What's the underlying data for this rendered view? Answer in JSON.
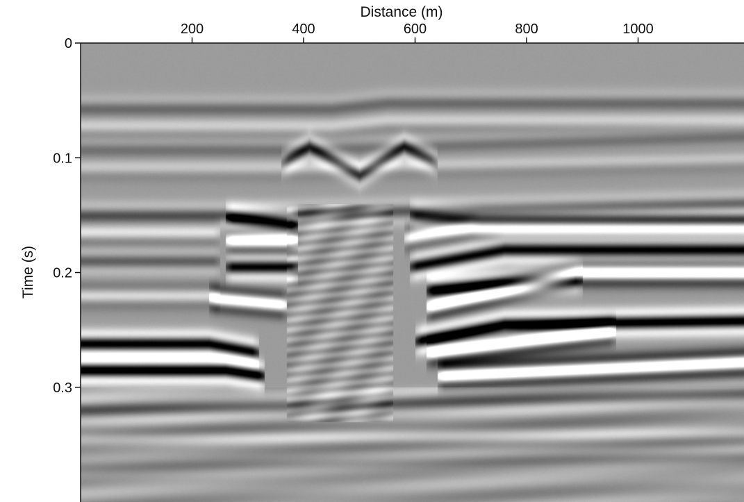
{
  "chart_data": {
    "type": "heatmap",
    "title": "",
    "xlabel": "Distance (m)",
    "ylabel": "Time (s)",
    "xlim": [
      0,
      1190
    ],
    "ylim": [
      0,
      0.4
    ],
    "y_inverted": true,
    "x_axis_position": "top",
    "colormap": "gray",
    "x_ticks": [
      {
        "value": 200,
        "label": "200"
      },
      {
        "value": 400,
        "label": "400"
      },
      {
        "value": 600,
        "label": "600"
      },
      {
        "value": 800,
        "label": "800"
      },
      {
        "value": 1000,
        "label": "1000"
      }
    ],
    "y_ticks": [
      {
        "value": 0,
        "label": "0"
      },
      {
        "value": 0.1,
        "label": "0.1"
      },
      {
        "value": 0.2,
        "label": "0.2"
      },
      {
        "value": 0.3,
        "label": "0.3"
      }
    ],
    "background_color": "#9c9c9c",
    "reflectors": [
      {
        "x": [
          0,
          450,
          550,
          1190
        ],
        "t": [
          0.057,
          0.057,
          0.052,
          0.052
        ],
        "amp": 0.35
      },
      {
        "x": [
          0,
          450,
          550,
          1190
        ],
        "t": [
          0.072,
          0.072,
          0.067,
          0.067
        ],
        "amp": -0.35
      },
      {
        "x": [
          0,
          380,
          1190
        ],
        "t": [
          0.093,
          0.093,
          0.082
        ],
        "amp": 0.3
      },
      {
        "x": [
          0,
          380,
          1190
        ],
        "t": [
          0.108,
          0.108,
          0.1
        ],
        "amp": -0.3
      },
      {
        "x": [
          360,
          410,
          500,
          580,
          640
        ],
        "t": [
          0.105,
          0.09,
          0.115,
          0.09,
          0.105
        ],
        "amp": 0.8
      },
      {
        "x": [
          0,
          250,
          1190
        ],
        "t": [
          0.15,
          0.15,
          0.14
        ],
        "amp": 0.55
      },
      {
        "x": [
          0,
          250
        ],
        "t": [
          0.165,
          0.165
        ],
        "amp": -0.5
      },
      {
        "x": [
          0,
          250
        ],
        "t": [
          0.19,
          0.19
        ],
        "amp": 0.5
      },
      {
        "x": [
          0,
          250
        ],
        "t": [
          0.22,
          0.22
        ],
        "amp": -0.5
      },
      {
        "x": [
          260,
          390
        ],
        "t": [
          0.152,
          0.158
        ],
        "amp": 1.4
      },
      {
        "x": [
          260,
          390
        ],
        "t": [
          0.172,
          0.172
        ],
        "amp": -1.4
      },
      {
        "x": [
          260,
          390
        ],
        "t": [
          0.195,
          0.195
        ],
        "amp": 1.3
      },
      {
        "x": [
          230,
          370
        ],
        "t": [
          0.222,
          0.228
        ],
        "amp": -1.3
      },
      {
        "x": [
          590,
          720,
          1190
        ],
        "t": [
          0.15,
          0.155,
          0.155
        ],
        "amp": 0.9
      },
      {
        "x": [
          580,
          700,
          800,
          1190
        ],
        "t": [
          0.17,
          0.16,
          0.16,
          0.16
        ],
        "amp": -0.9
      },
      {
        "x": [
          590,
          760,
          1190
        ],
        "t": [
          0.195,
          0.18,
          0.18
        ],
        "amp": 1.3
      },
      {
        "x": [
          620,
          900,
          1190
        ],
        "t": [
          0.23,
          0.2,
          0.2
        ],
        "amp": -1.5
      },
      {
        "x": [
          620,
          900
        ],
        "t": [
          0.215,
          0.205
        ],
        "amp": 1.3
      },
      {
        "x": [
          0,
          230,
          320
        ],
        "t": [
          0.262,
          0.262,
          0.27
        ],
        "amp": 1.4
      },
      {
        "x": [
          600,
          760,
          1190
        ],
        "t": [
          0.26,
          0.245,
          0.242
        ],
        "amp": 1.5
      },
      {
        "x": [
          620,
          960
        ],
        "t": [
          0.27,
          0.25
        ],
        "amp": -1.5
      },
      {
        "x": [
          0,
          260,
          330
        ],
        "t": [
          0.285,
          0.285,
          0.29
        ],
        "amp": 1.6
      },
      {
        "x": [
          640,
          1190
        ],
        "t": [
          0.29,
          0.278
        ],
        "amp": -1.6
      },
      {
        "x": [
          0,
          500,
          1190
        ],
        "t": [
          0.32,
          0.315,
          0.305
        ],
        "amp": 0.4
      },
      {
        "x": [
          0,
          1190
        ],
        "t": [
          0.345,
          0.34
        ],
        "amp": -0.3
      },
      {
        "x": [
          0,
          1190
        ],
        "t": [
          0.37,
          0.36
        ],
        "amp": 0.3
      }
    ],
    "diffraction_zones": [
      {
        "x": [
          370,
          560
        ],
        "t": [
          0.14,
          0.33
        ],
        "strength": 0.35
      }
    ]
  }
}
